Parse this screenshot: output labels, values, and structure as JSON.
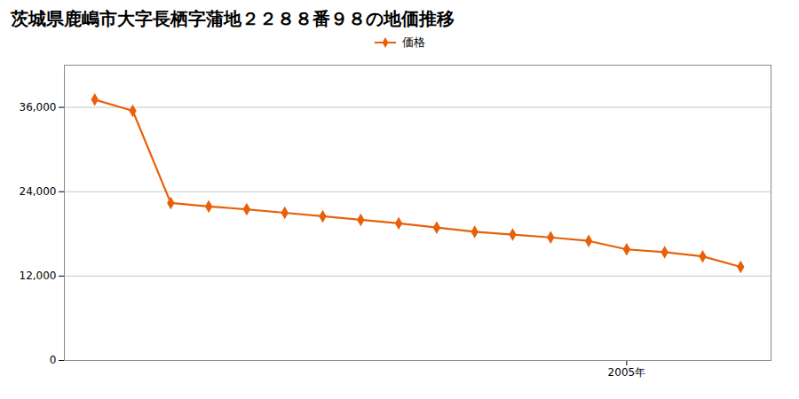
{
  "chart_data": {
    "type": "line",
    "title": "茨城県鹿嶋市大字長栖字蒲地２２８８番９８の地価推移",
    "x": [
      1991,
      1992,
      1993,
      1994,
      1995,
      1996,
      1997,
      1998,
      1999,
      2000,
      2001,
      2002,
      2003,
      2004,
      2005,
      2006,
      2007,
      2008
    ],
    "series": [
      {
        "name": "価格",
        "color": "#E8600A",
        "marker": "diamond",
        "values": [
          37100,
          35500,
          22400,
          21900,
          21500,
          21000,
          20500,
          20000,
          19500,
          18900,
          18300,
          17900,
          17500,
          17000,
          15800,
          15400,
          14800,
          13300
        ]
      }
    ],
    "xlim": [
      1990.2,
      2008.8
    ],
    "xticks": [
      {
        "value": 2005,
        "label": "2005年"
      }
    ],
    "ylim": [
      0,
      42000
    ],
    "yticks": [
      0,
      {
        "value": 12000,
        "label": "12,000"
      },
      {
        "value": 24000,
        "label": "24,000"
      },
      {
        "value": 36000,
        "label": "36,000"
      }
    ],
    "grid": "y",
    "legend": "top"
  }
}
